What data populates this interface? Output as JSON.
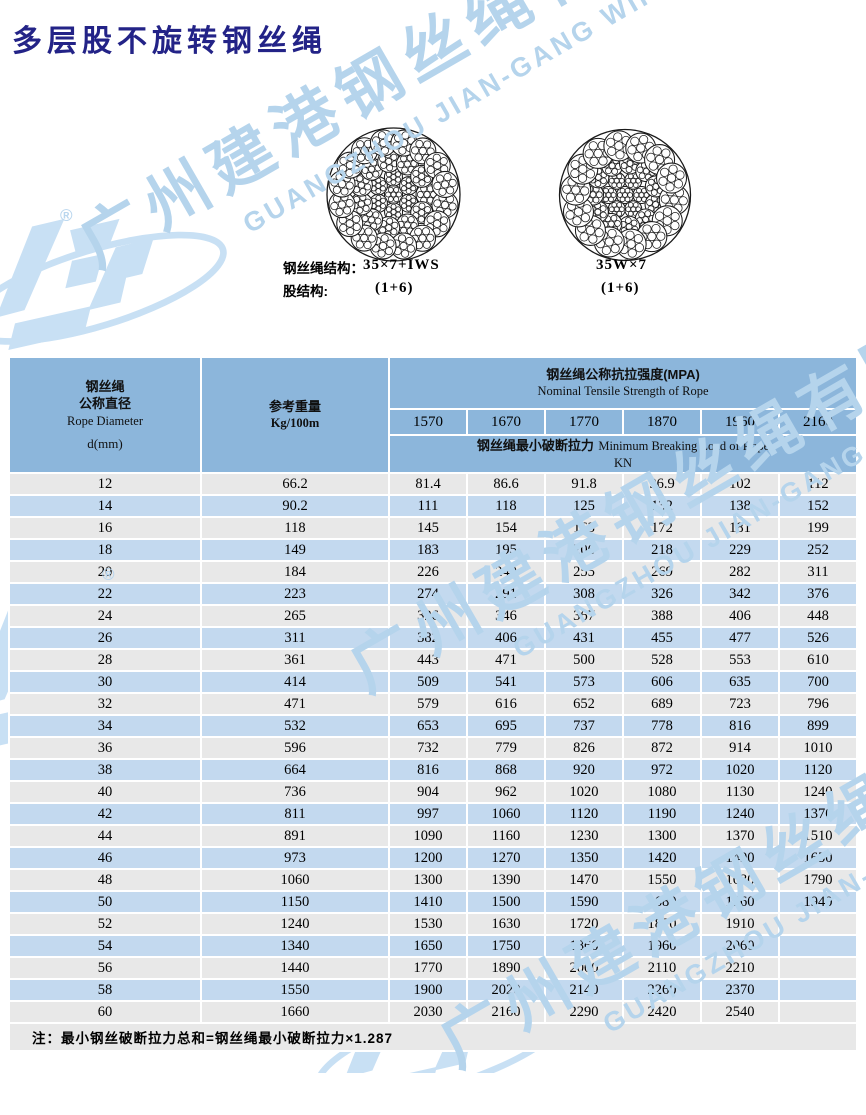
{
  "page": {
    "title": "多层股不旋转钢丝绳",
    "note": "注：最小钢丝破断拉力总和=钢丝绳最小破断拉力×1.287"
  },
  "watermark": {
    "company_cn": "广州建港钢丝绳有限公司",
    "company_en": "GUANGZHOU JIAN-GANG WIRE ROPE CO.,LTD",
    "registered_mark": "®"
  },
  "diagrams": {
    "construction_label": "钢丝绳结构：",
    "strand_label": "股结构:",
    "left": {
      "construction": "35×7+IWS",
      "strand": "(1+6)"
    },
    "right": {
      "construction": "35W×7",
      "strand": "(1+6)"
    }
  },
  "table": {
    "col1_header": {
      "cn1": "钢丝绳",
      "cn2": "公称直径",
      "en": "Rope  Diameter",
      "unit": "d(mm)"
    },
    "col2_header": {
      "cn": "参考重量",
      "unit": "Kg/100m"
    },
    "strength_header": {
      "cn": "钢丝绳公称抗拉强度(MPA)",
      "en": "Nominal Tensile Strength of Rope"
    },
    "strength_values": [
      "1570",
      "1670",
      "1770",
      "1870",
      "1960",
      "2160"
    ],
    "breaking_header": {
      "cn": "钢丝绳最小破断拉力",
      "en": "Minimum Breaking Load of Rope",
      "unit": "KN"
    },
    "rows": [
      [
        "12",
        "66.2",
        "81.4",
        "86.6",
        "91.8",
        "96.9",
        "102",
        "112"
      ],
      [
        "14",
        "90.2",
        "111",
        "118",
        "125",
        "132",
        "138",
        "152"
      ],
      [
        "16",
        "118",
        "145",
        "154",
        "163",
        "172",
        "181",
        "199"
      ],
      [
        "18",
        "149",
        "183",
        "195",
        "206",
        "218",
        "229",
        "252"
      ],
      [
        "20",
        "184",
        "226",
        "240",
        "255",
        "269",
        "282",
        "311"
      ],
      [
        "22",
        "223",
        "274",
        "291",
        "308",
        "326",
        "342",
        "376"
      ],
      [
        "24",
        "265",
        "326",
        "346",
        "367",
        "388",
        "406",
        "448"
      ],
      [
        "26",
        "311",
        "382",
        "406",
        "431",
        "455",
        "477",
        "526"
      ],
      [
        "28",
        "361",
        "443",
        "471",
        "500",
        "528",
        "553",
        "610"
      ],
      [
        "30",
        "414",
        "509",
        "541",
        "573",
        "606",
        "635",
        "700"
      ],
      [
        "32",
        "471",
        "579",
        "616",
        "652",
        "689",
        "723",
        "796"
      ],
      [
        "34",
        "532",
        "653",
        "695",
        "737",
        "778",
        "816",
        "899"
      ],
      [
        "36",
        "596",
        "732",
        "779",
        "826",
        "872",
        "914",
        "1010"
      ],
      [
        "38",
        "664",
        "816",
        "868",
        "920",
        "972",
        "1020",
        "1120"
      ],
      [
        "40",
        "736",
        "904",
        "962",
        "1020",
        "1080",
        "1130",
        "1240"
      ],
      [
        "42",
        "811",
        "997",
        "1060",
        "1120",
        "1190",
        "1240",
        "1370"
      ],
      [
        "44",
        "891",
        "1090",
        "1160",
        "1230",
        "1300",
        "1370",
        "1510"
      ],
      [
        "46",
        "973",
        "1200",
        "1270",
        "1350",
        "1420",
        "1490",
        "1650"
      ],
      [
        "48",
        "1060",
        "1300",
        "1390",
        "1470",
        "1550",
        "1630",
        "1790"
      ],
      [
        "50",
        "1150",
        "1410",
        "1500",
        "1590",
        "1680",
        "1760",
        "1940"
      ],
      [
        "52",
        "1240",
        "1530",
        "1630",
        "1720",
        "1820",
        "1910",
        ""
      ],
      [
        "54",
        "1340",
        "1650",
        "1750",
        "1860",
        "1960",
        "2060",
        ""
      ],
      [
        "56",
        "1440",
        "1770",
        "1890",
        "2000",
        "2110",
        "2210",
        ""
      ],
      [
        "58",
        "1550",
        "1900",
        "2020",
        "2140",
        "2260",
        "2370",
        ""
      ],
      [
        "60",
        "1660",
        "2030",
        "2160",
        "2290",
        "2420",
        "2540",
        ""
      ]
    ]
  },
  "colors": {
    "header_blue": "#8cb6db",
    "row_blue": "#c3d9ef",
    "row_gray": "#e8e8e8",
    "title_navy": "#232387",
    "watermark_blue": "#b5d4ec",
    "diagram_ink": "#1a1a1a"
  }
}
